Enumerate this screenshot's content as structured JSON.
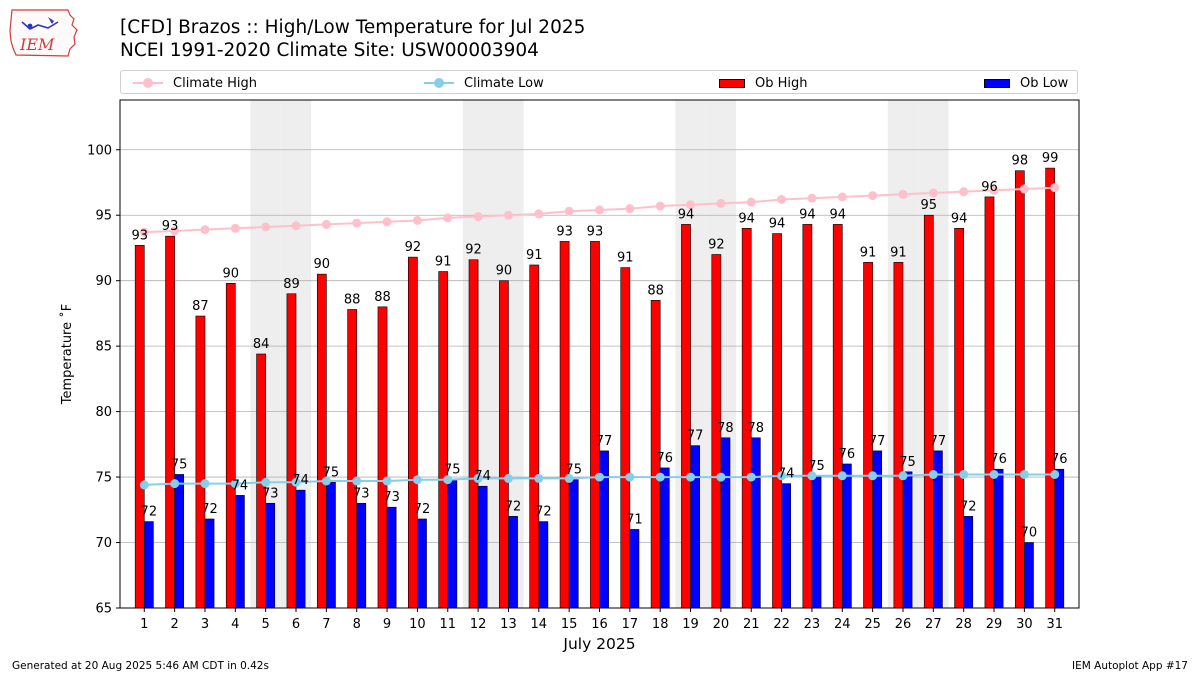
{
  "header": {
    "logo_text": "IEM",
    "title_line1": "[CFD] Brazos :: High/Low Temperature for Jul 2025",
    "title_line2": "NCEI 1991-2020 Climate Site: USW00003904"
  },
  "legend": {
    "climate_high": "Climate High",
    "climate_low": "Climate Low",
    "ob_high": "Ob High",
    "ob_low": "Ob Low"
  },
  "colors": {
    "ob_high": "#ff0000",
    "ob_low": "#0000ff",
    "climate_high": "#ffc0cb",
    "climate_low": "#87ceeb",
    "weekend_band": "#eeeeee",
    "grid": "#b0b0b0"
  },
  "chart_data": {
    "type": "bar",
    "title": "[CFD] Brazos :: High/Low Temperature for Jul 2025",
    "subtitle": "NCEI 1991-2020 Climate Site: USW00003904",
    "xlabel": "July 2025",
    "ylabel": "Temperature ˚F",
    "ylim": [
      65,
      103.8
    ],
    "yticks": [
      65,
      70,
      75,
      80,
      85,
      90,
      95,
      100
    ],
    "grid": "horizontal",
    "legend_position": "top",
    "categories": [
      "1",
      "2",
      "3",
      "4",
      "5",
      "6",
      "7",
      "8",
      "9",
      "10",
      "11",
      "12",
      "13",
      "14",
      "15",
      "16",
      "17",
      "18",
      "19",
      "20",
      "21",
      "22",
      "23",
      "24",
      "25",
      "26",
      "27",
      "28",
      "29",
      "30",
      "31"
    ],
    "shaded_days": [
      5,
      6,
      12,
      13,
      19,
      20,
      26,
      27
    ],
    "series": [
      {
        "name": "Ob High",
        "kind": "bar",
        "values": [
          92.7,
          93.4,
          87.3,
          89.8,
          84.4,
          89.0,
          90.5,
          87.8,
          88.0,
          91.8,
          90.7,
          91.6,
          90.0,
          91.2,
          93.0,
          93.0,
          91.0,
          88.5,
          94.3,
          92.0,
          94.0,
          93.6,
          94.3,
          94.3,
          91.4,
          91.4,
          95.0,
          94.0,
          96.4,
          98.4,
          98.6
        ],
        "labels": [
          "93",
          "93",
          "87",
          "90",
          "84",
          "89",
          "90",
          "88",
          "88",
          "92",
          "91",
          "92",
          "90",
          "91",
          "93",
          "93",
          "91",
          "88",
          "94",
          "92",
          "94",
          "94",
          "94",
          "94",
          "91",
          "91",
          "95",
          "94",
          "96",
          "98",
          "99"
        ]
      },
      {
        "name": "Ob Low",
        "kind": "bar",
        "values": [
          71.6,
          75.2,
          71.8,
          73.6,
          73.0,
          74.0,
          74.6,
          73.0,
          72.7,
          71.8,
          74.8,
          74.3,
          72.0,
          71.6,
          74.8,
          77.0,
          71.0,
          75.7,
          77.4,
          78.0,
          78.0,
          74.5,
          75.1,
          76.0,
          77.0,
          75.4,
          77.0,
          72.0,
          75.6,
          70.0,
          75.6
        ],
        "labels": [
          "72",
          "75",
          "72",
          "74",
          "73",
          "74",
          "75",
          "73",
          "73",
          "72",
          "75",
          "74",
          "72",
          "72",
          "75",
          "77",
          "71",
          "76",
          "77",
          "78",
          "78",
          "74",
          "75",
          "76",
          "77",
          "75",
          "77",
          "72",
          "76",
          "70",
          "76"
        ]
      },
      {
        "name": "Climate High",
        "kind": "line",
        "values": [
          93.7,
          93.8,
          93.9,
          94.0,
          94.1,
          94.2,
          94.3,
          94.4,
          94.5,
          94.6,
          94.8,
          94.9,
          95.0,
          95.1,
          95.3,
          95.4,
          95.5,
          95.7,
          95.8,
          95.9,
          96.0,
          96.2,
          96.3,
          96.4,
          96.5,
          96.6,
          96.7,
          96.8,
          96.9,
          97.0,
          97.1
        ]
      },
      {
        "name": "Climate Low",
        "kind": "line",
        "values": [
          74.4,
          74.5,
          74.5,
          74.5,
          74.6,
          74.6,
          74.7,
          74.7,
          74.7,
          74.8,
          74.8,
          74.9,
          74.9,
          74.9,
          74.9,
          75.0,
          75.0,
          75.0,
          75.0,
          75.0,
          75.0,
          75.1,
          75.1,
          75.1,
          75.1,
          75.1,
          75.2,
          75.2,
          75.2,
          75.2,
          75.2
        ]
      }
    ]
  },
  "footer": {
    "generated": "Generated at 20 Aug 2025 5:46 AM CDT in 0.42s",
    "app": "IEM Autoplot App #17"
  }
}
